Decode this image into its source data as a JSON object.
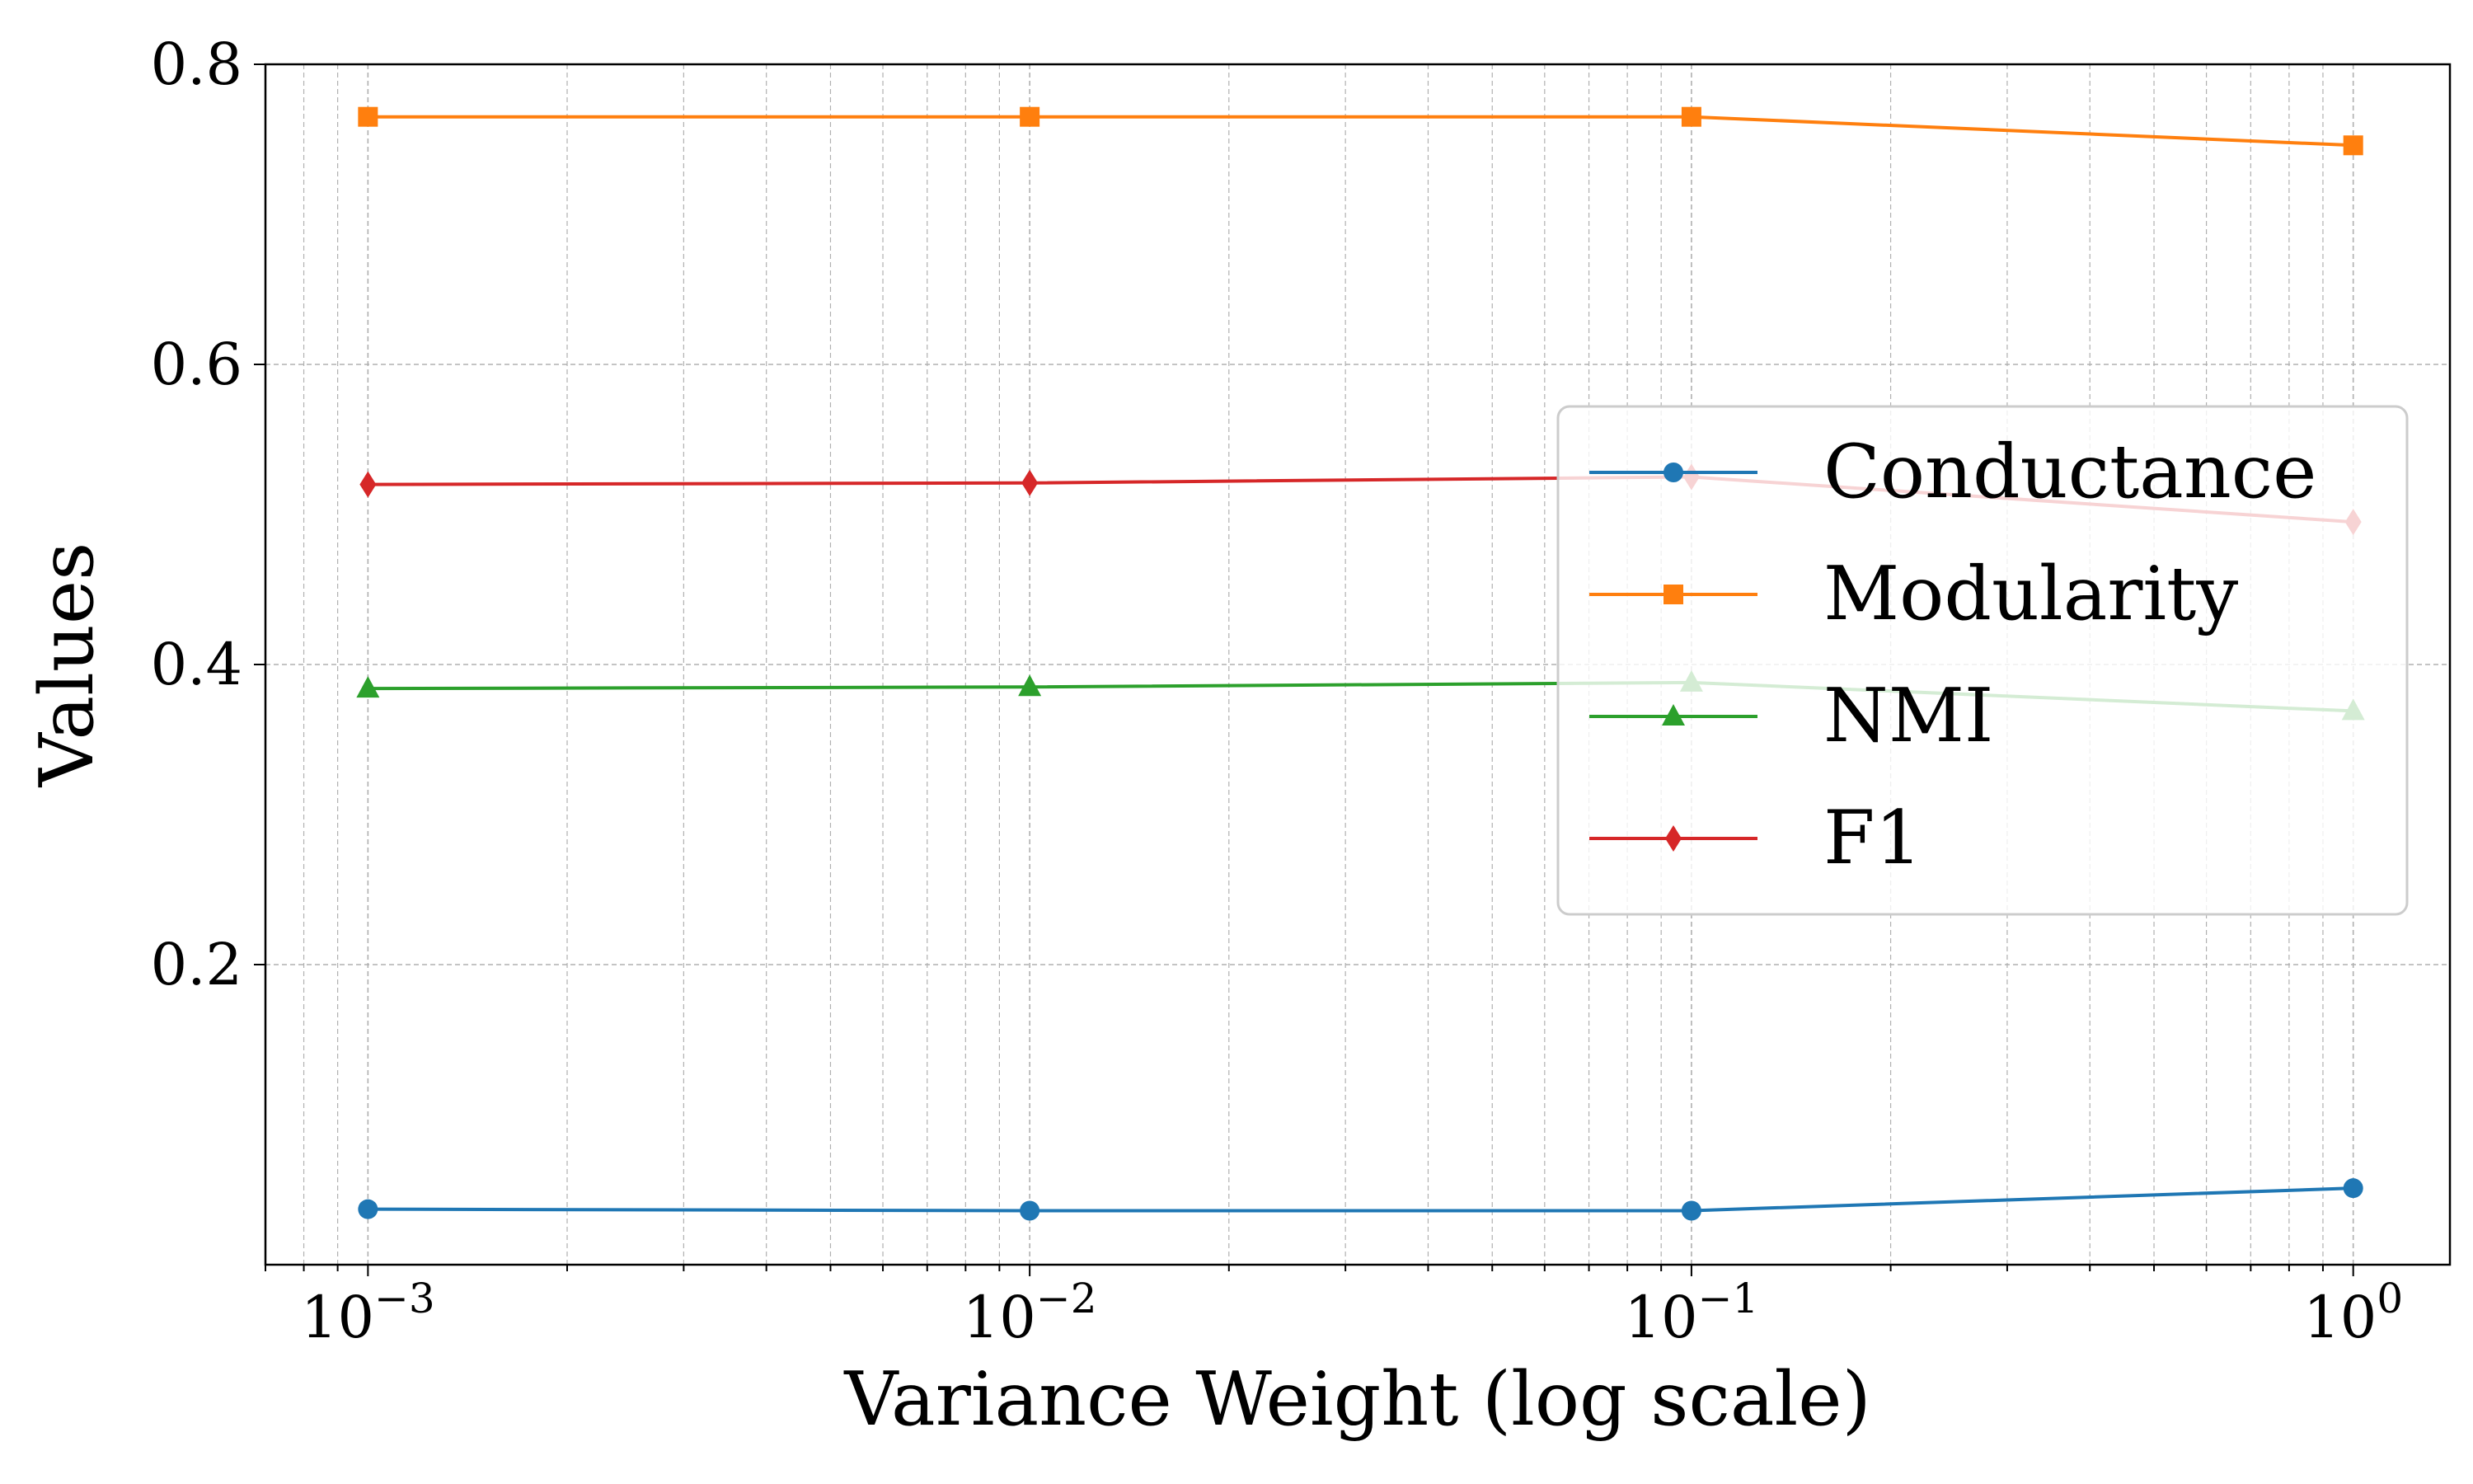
{
  "chart_data": {
    "type": "line",
    "title": "",
    "xlabel": "Variance Weight (log scale)",
    "ylabel": "Values",
    "xscale": "log",
    "x": [
      0.001,
      0.01,
      0.1,
      1
    ],
    "xlim": [
      0.0007,
      1.4
    ],
    "ylim": [
      0.0,
      0.8
    ],
    "xticks": [
      {
        "value": 0.001,
        "base": "10",
        "exp": "−3"
      },
      {
        "value": 0.01,
        "base": "10",
        "exp": "−2"
      },
      {
        "value": 0.1,
        "base": "10",
        "exp": "−1"
      },
      {
        "value": 1,
        "base": "10",
        "exp": "0"
      }
    ],
    "yticks": [
      {
        "value": 0.2,
        "label": "0.2"
      },
      {
        "value": 0.4,
        "label": "0.4"
      },
      {
        "value": 0.6,
        "label": "0.6"
      },
      {
        "value": 0.8,
        "label": "0.8"
      }
    ],
    "grid": true,
    "legend_position": "center-right",
    "series": [
      {
        "name": "Conductance",
        "marker": "circle",
        "color": "#1f77b4",
        "values": [
          0.037,
          0.036,
          0.036,
          0.051
        ]
      },
      {
        "name": "Modularity",
        "marker": "square",
        "color": "#ff7f0e",
        "values": [
          0.765,
          0.765,
          0.765,
          0.746
        ]
      },
      {
        "name": "NMI",
        "marker": "triangle",
        "color": "#2ca02c",
        "values": [
          0.384,
          0.385,
          0.388,
          0.369
        ]
      },
      {
        "name": "F1",
        "marker": "diamond",
        "color": "#d62728",
        "values": [
          0.52,
          0.521,
          0.525,
          0.495
        ]
      }
    ]
  }
}
